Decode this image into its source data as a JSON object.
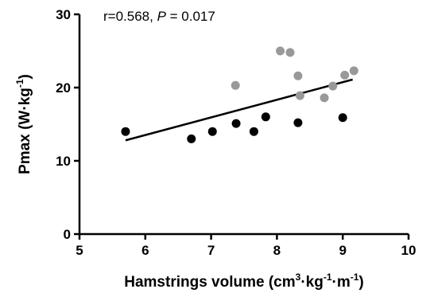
{
  "chart_data": {
    "type": "scatter",
    "annotation": {
      "r_text": "r=0.568, ",
      "p_italic": "P",
      "p_text": " = 0.017"
    },
    "xlabel": {
      "main": "Hamstrings volume (cm",
      "sup1": "3",
      "mid1": "·kg",
      "sup2": "-1",
      "mid2": "·m",
      "sup3": "-1",
      "end": ")"
    },
    "ylabel": {
      "main": "Pmax (W·kg",
      "sup": "-1",
      "end": ")"
    },
    "xlim": [
      5,
      10
    ],
    "ylim": [
      0,
      30
    ],
    "xticks": [
      "5",
      "6",
      "7",
      "8",
      "9",
      "10"
    ],
    "yticks": [
      "0",
      "10",
      "20",
      "30"
    ],
    "grid": false,
    "series": [
      {
        "color": "#000000",
        "points": [
          {
            "x": 5.7,
            "y": 14.0
          },
          {
            "x": 6.7,
            "y": 13.0
          },
          {
            "x": 7.02,
            "y": 14.0
          },
          {
            "x": 7.38,
            "y": 15.1
          },
          {
            "x": 7.65,
            "y": 14.0
          },
          {
            "x": 7.83,
            "y": 16.0
          },
          {
            "x": 8.32,
            "y": 15.2
          },
          {
            "x": 9.0,
            "y": 15.9
          }
        ]
      },
      {
        "color": "#999999",
        "points": [
          {
            "x": 7.37,
            "y": 20.3
          },
          {
            "x": 8.05,
            "y": 25.0
          },
          {
            "x": 8.2,
            "y": 24.8
          },
          {
            "x": 8.32,
            "y": 21.6
          },
          {
            "x": 8.35,
            "y": 18.9
          },
          {
            "x": 8.72,
            "y": 18.6
          },
          {
            "x": 8.85,
            "y": 20.2
          },
          {
            "x": 9.03,
            "y": 21.7
          },
          {
            "x": 9.17,
            "y": 22.3
          }
        ]
      }
    ],
    "regression_line": {
      "x": [
        5.7,
        9.15
      ],
      "y": [
        12.8,
        21.1
      ],
      "color": "#000000"
    }
  }
}
